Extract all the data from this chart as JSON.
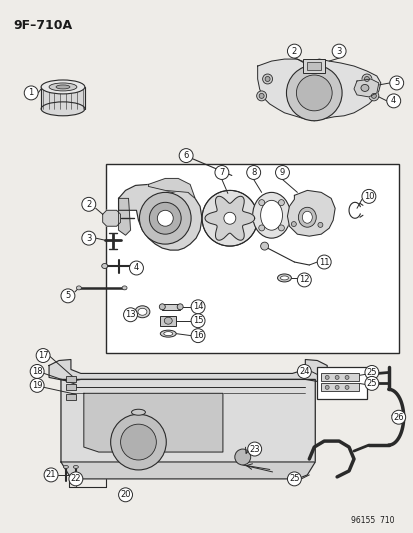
{
  "title": "9F–710A",
  "footer": "96155  710",
  "bg_color": "#eeece8",
  "line_color": "#2a2a2a",
  "text_color": "#1a1a1a",
  "fig_width": 4.14,
  "fig_height": 5.33,
  "dpi": 100
}
